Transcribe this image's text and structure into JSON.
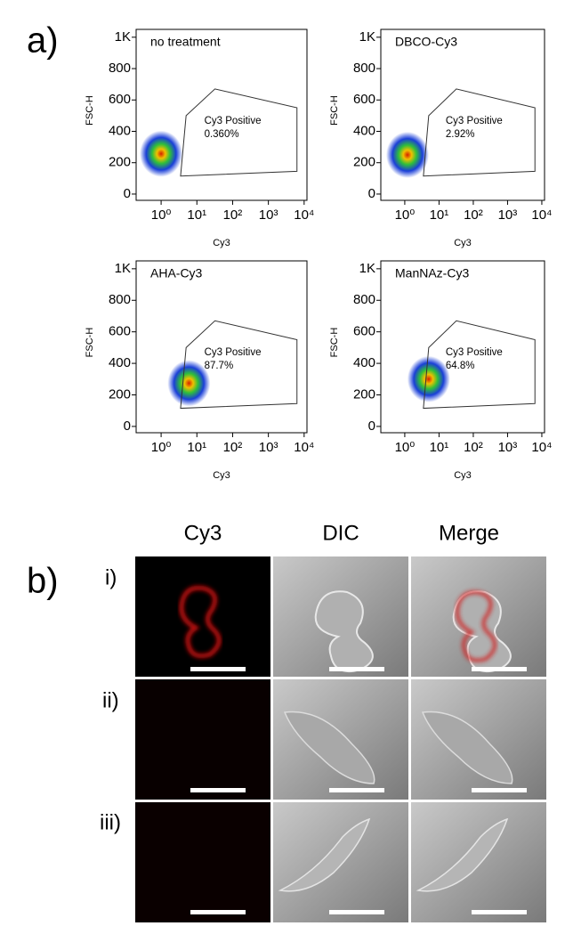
{
  "panel_labels": [
    "a)",
    "b)"
  ],
  "chart_data": [
    {
      "type": "scatter",
      "title": "no treatment",
      "xlabel": "Cy3",
      "ylabel": "FSC-H",
      "xscale": "log",
      "xlim": [
        0.2,
        12000
      ],
      "ylim": [
        -40,
        1050
      ],
      "xticks": [
        {
          "value": 1,
          "label": "10⁰"
        },
        {
          "value": 10,
          "label": "10¹"
        },
        {
          "value": 100,
          "label": "10²"
        },
        {
          "value": 1000,
          "label": "10³"
        },
        {
          "value": 10000,
          "label": "10⁴"
        }
      ],
      "yticks": [
        0,
        200,
        400,
        600,
        800,
        {
          "value": 1000,
          "label": "1K"
        }
      ],
      "population": {
        "x": 1,
        "y": 257
      },
      "gate": {
        "label": "Cy3 Positive",
        "percent": "0.360%",
        "x": [
          3.5,
          5,
          32,
          6300,
          6300
        ],
        "y": [
          115,
          500,
          670,
          550,
          145
        ]
      }
    },
    {
      "type": "scatter",
      "title": "DBCO-Cy3",
      "xlabel": "Cy3",
      "ylabel": "FSC-H",
      "xscale": "log",
      "xlim": [
        0.2,
        12000
      ],
      "ylim": [
        -40,
        1050
      ],
      "xticks": [
        {
          "value": 1,
          "label": "10⁰"
        },
        {
          "value": 10,
          "label": "10¹"
        },
        {
          "value": 100,
          "label": "10²"
        },
        {
          "value": 1000,
          "label": "10³"
        },
        {
          "value": 10000,
          "label": "10⁴"
        }
      ],
      "yticks": [
        0,
        200,
        400,
        600,
        800,
        {
          "value": 1000,
          "label": "1K"
        }
      ],
      "population": {
        "x": 1.2,
        "y": 250
      },
      "gate": {
        "label": "Cy3 Positive",
        "percent": "2.92%",
        "x": [
          3.5,
          5,
          32,
          6300,
          6300
        ],
        "y": [
          115,
          500,
          670,
          550,
          145
        ]
      }
    },
    {
      "type": "scatter",
      "title": "AHA-Cy3",
      "xlabel": "Cy3",
      "ylabel": "FSC-H",
      "xscale": "log",
      "xlim": [
        0.2,
        12000
      ],
      "ylim": [
        -40,
        1050
      ],
      "xticks": [
        {
          "value": 1,
          "label": "10⁰"
        },
        {
          "value": 10,
          "label": "10¹"
        },
        {
          "value": 100,
          "label": "10²"
        },
        {
          "value": 1000,
          "label": "10³"
        },
        {
          "value": 10000,
          "label": "10⁴"
        }
      ],
      "yticks": [
        0,
        200,
        400,
        600,
        800,
        {
          "value": 1000,
          "label": "1K"
        }
      ],
      "population": {
        "x": 6,
        "y": 274
      },
      "gate": {
        "label": "Cy3 Positive",
        "percent": "87.7%",
        "x": [
          3.5,
          5,
          32,
          6300,
          6300
        ],
        "y": [
          115,
          500,
          670,
          550,
          145
        ]
      }
    },
    {
      "type": "scatter",
      "title": "ManNAz-Cy3",
      "xlabel": "Cy3",
      "ylabel": "FSC-H",
      "xscale": "log",
      "xlim": [
        0.2,
        12000
      ],
      "ylim": [
        -40,
        1050
      ],
      "xticks": [
        {
          "value": 1,
          "label": "10⁰"
        },
        {
          "value": 10,
          "label": "10¹"
        },
        {
          "value": 100,
          "label": "10²"
        },
        {
          "value": 1000,
          "label": "10³"
        },
        {
          "value": 10000,
          "label": "10⁴"
        }
      ],
      "yticks": [
        0,
        200,
        400,
        600,
        800,
        {
          "value": 1000,
          "label": "1K"
        }
      ],
      "population": {
        "x": 5,
        "y": 300
      },
      "gate": {
        "label": "Cy3 Positive",
        "percent": "64.8%",
        "x": [
          3.5,
          5,
          32,
          6300,
          6300
        ],
        "y": [
          115,
          500,
          670,
          550,
          145
        ]
      }
    }
  ],
  "microscopy": {
    "columns": [
      "Cy3",
      "DIC",
      "Merge"
    ],
    "rows": [
      "i)",
      "ii)",
      "iii)"
    ]
  }
}
